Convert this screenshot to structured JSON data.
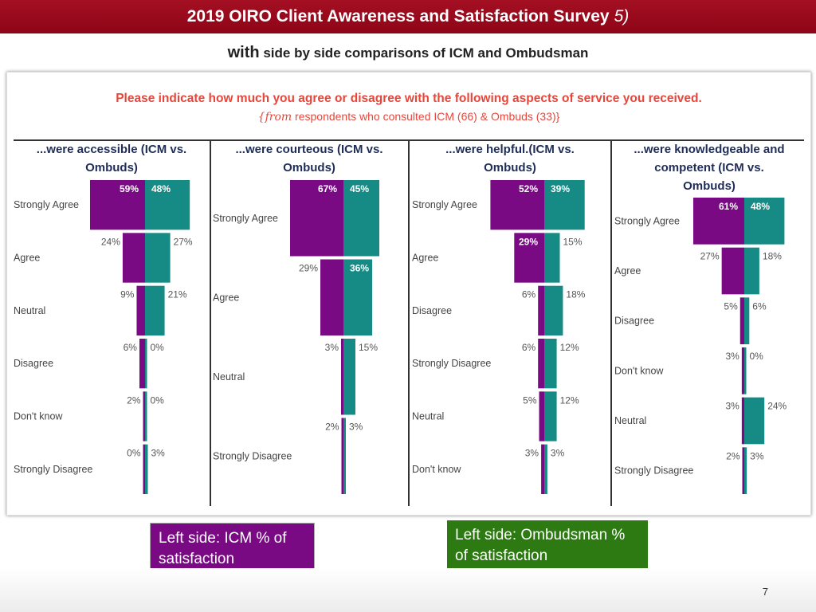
{
  "header": {
    "title": "2019 OIRO Client Awareness and Satisfaction Survey",
    "title_suffix": "5)",
    "subtitle_prefix": "with",
    "subtitle_rest": "side by side comparisons of ICM and Ombudsman"
  },
  "question": {
    "text": "Please indicate how much you agree or disagree with the following aspects of service you received.",
    "sub_prefix": "{from",
    "sub_rest": "respondents who consulted ICM (66) & Ombuds (33)}"
  },
  "colors": {
    "icm": "#7a0a84",
    "ombuds": "#168a85",
    "question": "#e8463b"
  },
  "chart_data": [
    {
      "type": "bar",
      "title_lines": [
        "...were accessible (ICM vs.",
        "Ombuds)"
      ],
      "categories": [
        "Strongly Agree",
        "Agree",
        "Neutral",
        "Disagree",
        "Don't know",
        "Strongly Disagree"
      ],
      "series": [
        {
          "name": "ICM",
          "values": [
            59,
            24,
            9,
            6,
            2,
            0
          ]
        },
        {
          "name": "Ombuds",
          "values": [
            48,
            27,
            21,
            0,
            0,
            3
          ]
        }
      ]
    },
    {
      "type": "bar",
      "title_lines": [
        "...were courteous (ICM vs.",
        "Ombuds)"
      ],
      "categories": [
        "Strongly Agree",
        "Agree",
        "Neutral",
        "Strongly Disagree"
      ],
      "series": [
        {
          "name": "ICM",
          "values": [
            67,
            29,
            3,
            2
          ]
        },
        {
          "name": "Ombuds",
          "values": [
            45,
            36,
            15,
            3
          ]
        }
      ]
    },
    {
      "type": "bar",
      "title_lines": [
        "...were helpful.(ICM vs.",
        "Ombuds)"
      ],
      "categories": [
        "Strongly Agree",
        "Agree",
        "Disagree",
        "Strongly Disagree",
        "Neutral",
        "Don't know"
      ],
      "series": [
        {
          "name": "ICM",
          "values": [
            52,
            29,
            6,
            6,
            5,
            3
          ]
        },
        {
          "name": "Ombuds",
          "values": [
            39,
            15,
            18,
            12,
            12,
            3
          ]
        }
      ]
    },
    {
      "type": "bar",
      "title_lines": [
        "...were knowledgeable and",
        "competent (ICM vs.",
        "Ombuds)"
      ],
      "categories": [
        "Strongly Agree",
        "Agree",
        "Disagree",
        "Don't know",
        "Neutral",
        "Strongly Disagree"
      ],
      "series": [
        {
          "name": "ICM",
          "values": [
            61,
            27,
            5,
            3,
            3,
            2
          ]
        },
        {
          "name": "Ombuds",
          "values": [
            48,
            18,
            6,
            0,
            24,
            3
          ]
        }
      ]
    }
  ],
  "legend": {
    "icm_label": "Left side: ICM % of satisfaction",
    "ombuds_label": "Left side: Ombudsman % of satisfaction"
  },
  "page_number": "7"
}
